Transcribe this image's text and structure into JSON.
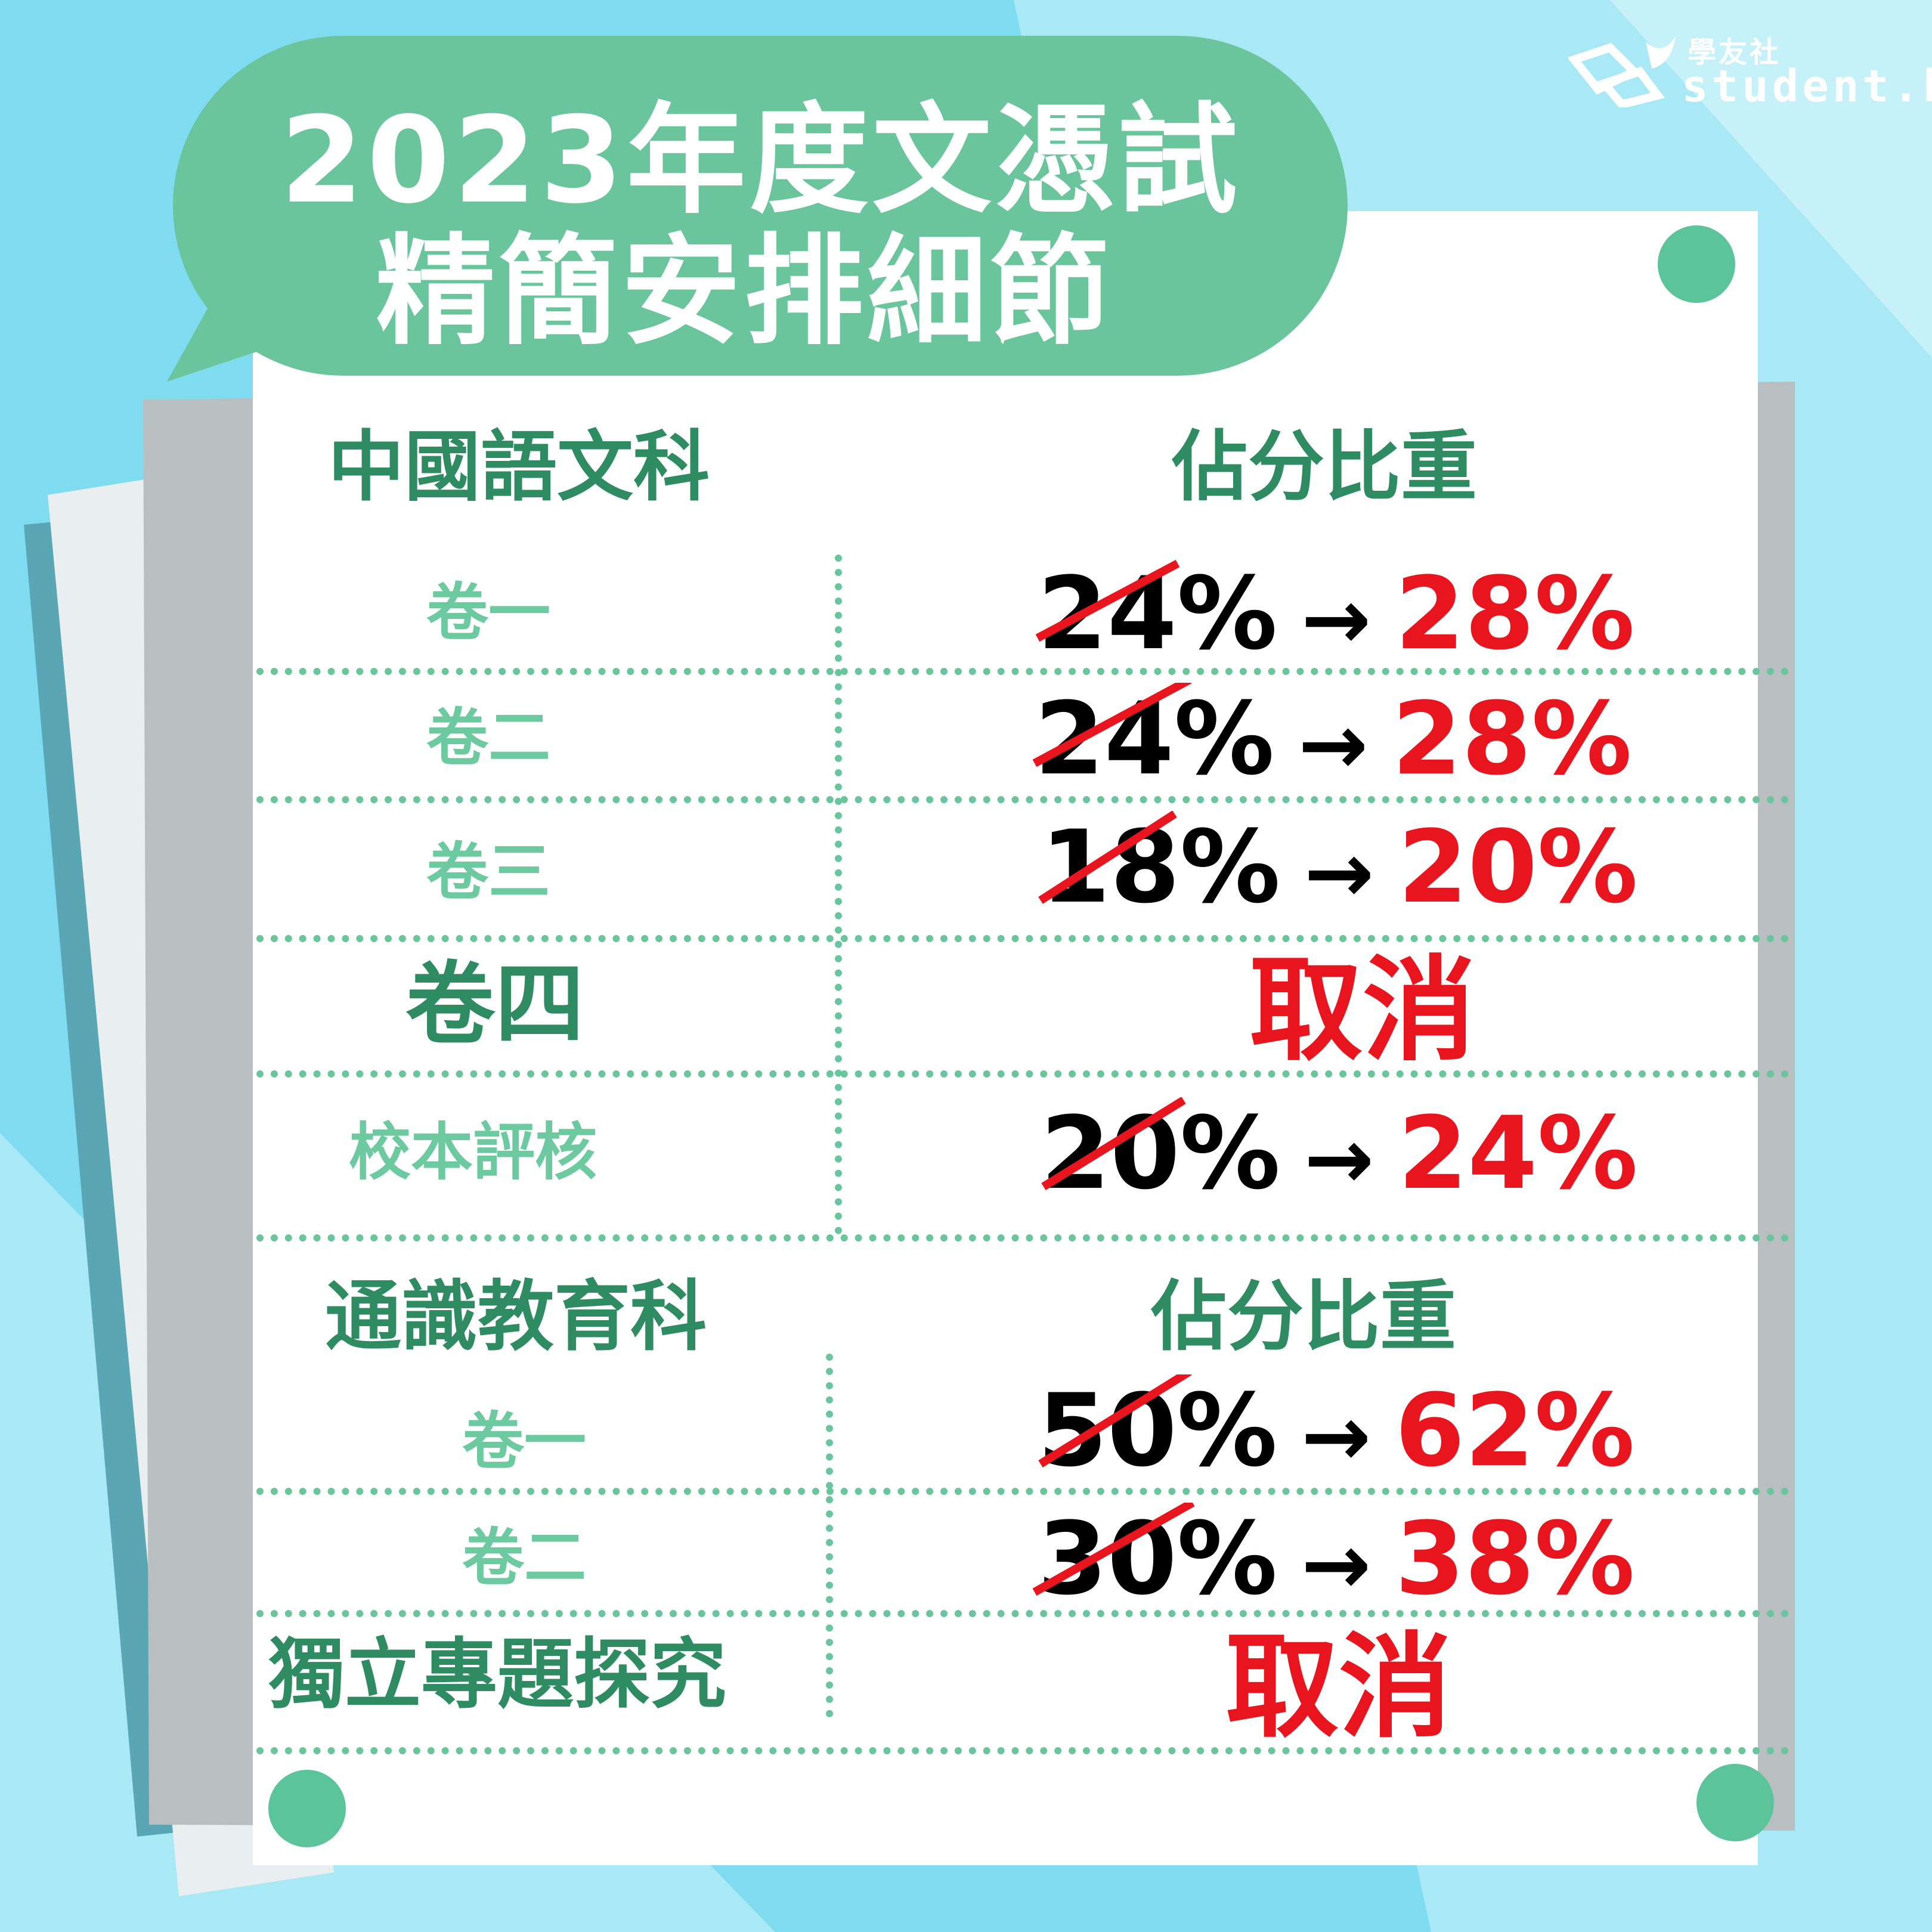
{
  "logo": {
    "cn": "學友社",
    "en": "student.hk"
  },
  "title": {
    "line1": "2023年度文憑試",
    "line2": "精簡安排細節"
  },
  "chinese": {
    "header_subject": "中國語文科",
    "header_weight": "佔分比重",
    "rows": [
      {
        "label": "卷一",
        "old": "24%",
        "arrow": "→",
        "new": "28%"
      },
      {
        "label": "卷二",
        "old": "24%",
        "arrow": "→",
        "new": "28%"
      },
      {
        "label": "卷三",
        "old": "18%",
        "arrow": "→",
        "new": "20%"
      },
      {
        "label": "卷四",
        "cancel": "取消"
      },
      {
        "label": "校本評核",
        "old": "20%",
        "arrow": "→",
        "new": "24%"
      }
    ]
  },
  "ls": {
    "header_subject": "通識教育科",
    "header_weight": "佔分比重",
    "rows": [
      {
        "label": "卷一",
        "old": "50%",
        "arrow": "→",
        "new": "62%"
      },
      {
        "label": "卷二",
        "old": "30%",
        "arrow": "→",
        "new": "38%"
      },
      {
        "label": "獨立專題探究",
        "cancel": "取消"
      }
    ]
  },
  "colors": {
    "accent_green": "#6ac59c",
    "dark_green": "#2f8c62",
    "red": "#e8141e",
    "sky": "#7fdcf0"
  }
}
